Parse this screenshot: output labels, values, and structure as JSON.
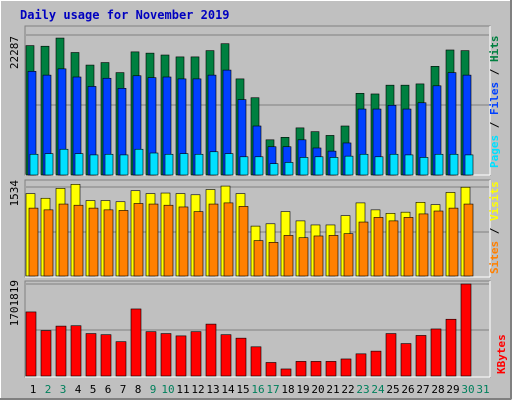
{
  "title": "Daily usage for November 2019",
  "colors": {
    "background": "#c0c0c0",
    "title": "#0000c0",
    "hits": "#008040",
    "files": "#0040ff",
    "pages": "#00e0ff",
    "visits": "#ffff00",
    "sites": "#ff8000",
    "kbytes": "#ff0000",
    "label_dark": "#000000",
    "label_weekend": "#00805c",
    "label_today": "#00805c"
  },
  "panels": {
    "hits": {
      "max_label": "22287",
      "side_label": {
        "pages": "Pages",
        "files": "Files",
        "hits": "Hits",
        "sep": " / "
      }
    },
    "visits": {
      "max_label": "1534",
      "side_label": {
        "sites": "Sites",
        "visits": "Visits",
        "sep": " / "
      }
    },
    "kbytes": {
      "max_label": "1701819",
      "side_label": {
        "kbytes": "KBytes"
      }
    }
  },
  "chart_data": [
    {
      "type": "bar",
      "panel": "hits",
      "categories": [
        "1",
        "2",
        "3",
        "4",
        "5",
        "6",
        "7",
        "8",
        "9",
        "10",
        "11",
        "12",
        "13",
        "14",
        "15",
        "16",
        "17",
        "18",
        "19",
        "20",
        "21",
        "22",
        "23",
        "24",
        "25",
        "26",
        "27",
        "28",
        "29",
        "30",
        "31"
      ],
      "ylim": [
        0,
        22287
      ],
      "series": [
        {
          "name": "Hits",
          "values": [
            20600,
            20500,
            21800,
            19500,
            17500,
            17900,
            16300,
            19600,
            19400,
            19100,
            18800,
            18800,
            19800,
            20900,
            15300,
            12300,
            5600,
            6000,
            7500,
            6900,
            6300,
            7800,
            13000,
            12900,
            14300,
            14300,
            14500,
            17300,
            19900,
            19800,
            0
          ]
        },
        {
          "name": "Files",
          "values": [
            16500,
            15900,
            16900,
            15600,
            14100,
            15400,
            13800,
            15800,
            15500,
            15600,
            15300,
            15300,
            15900,
            16700,
            12000,
            7800,
            4500,
            4500,
            5600,
            4300,
            3800,
            5100,
            10500,
            10500,
            11100,
            10500,
            11500,
            14200,
            16300,
            15900,
            0
          ]
        },
        {
          "name": "Pages",
          "values": [
            3300,
            3400,
            4100,
            3400,
            3200,
            3300,
            3200,
            4100,
            3500,
            3300,
            3400,
            3300,
            3700,
            3400,
            2900,
            2900,
            1800,
            2000,
            2800,
            2900,
            2800,
            3000,
            3300,
            2900,
            3300,
            3200,
            2800,
            3300,
            3300,
            3200,
            0
          ]
        }
      ]
    },
    {
      "type": "bar",
      "panel": "visits",
      "categories": [
        "1",
        "2",
        "3",
        "4",
        "5",
        "6",
        "7",
        "8",
        "9",
        "10",
        "11",
        "12",
        "13",
        "14",
        "15",
        "16",
        "17",
        "18",
        "19",
        "20",
        "21",
        "22",
        "23",
        "24",
        "25",
        "26",
        "27",
        "28",
        "29",
        "30",
        "31"
      ],
      "ylim": [
        0,
        1534
      ],
      "series": [
        {
          "name": "Visits",
          "values": [
            1420,
            1340,
            1510,
            1580,
            1300,
            1300,
            1280,
            1470,
            1420,
            1430,
            1420,
            1400,
            1490,
            1550,
            1420,
            860,
            900,
            1110,
            950,
            880,
            880,
            1040,
            1260,
            1140,
            1080,
            1100,
            1270,
            1230,
            1440,
            1530,
            0
          ]
        },
        {
          "name": "Sites",
          "values": [
            1170,
            1140,
            1240,
            1220,
            1170,
            1140,
            1130,
            1250,
            1240,
            1220,
            1190,
            1110,
            1240,
            1260,
            1200,
            610,
            580,
            700,
            660,
            690,
            700,
            730,
            930,
            1010,
            950,
            1010,
            1070,
            1120,
            1170,
            1240,
            0
          ]
        }
      ]
    },
    {
      "type": "bar",
      "panel": "kbytes",
      "categories": [
        "1",
        "2",
        "3",
        "4",
        "5",
        "6",
        "7",
        "8",
        "9",
        "10",
        "11",
        "12",
        "13",
        "14",
        "15",
        "16",
        "17",
        "18",
        "19",
        "20",
        "21",
        "22",
        "23",
        "24",
        "25",
        "26",
        "27",
        "28",
        "29",
        "30",
        "31"
      ],
      "ylim": [
        0,
        1701819
      ],
      "series": [
        {
          "name": "KBytes",
          "values": [
            1185000,
            840000,
            923000,
            930000,
            785000,
            764000,
            635000,
            1240000,
            820000,
            785000,
            742000,
            820000,
            960000,
            764000,
            700000,
            540000,
            250000,
            130000,
            270000,
            270000,
            270000,
            315000,
            410000,
            460000,
            785000,
            600000,
            750000,
            870000,
            1050000,
            1701819,
            0
          ]
        }
      ]
    }
  ],
  "x_labels": {
    "days": [
      "1",
      "2",
      "3",
      "4",
      "5",
      "6",
      "7",
      "8",
      "9",
      "10",
      "11",
      "12",
      "13",
      "14",
      "15",
      "16",
      "17",
      "18",
      "19",
      "20",
      "21",
      "22",
      "23",
      "24",
      "25",
      "26",
      "27",
      "28",
      "29",
      "30",
      "31"
    ],
    "weekend_days": [
      2,
      3,
      9,
      10,
      16,
      17,
      23,
      24,
      30,
      31
    ]
  }
}
